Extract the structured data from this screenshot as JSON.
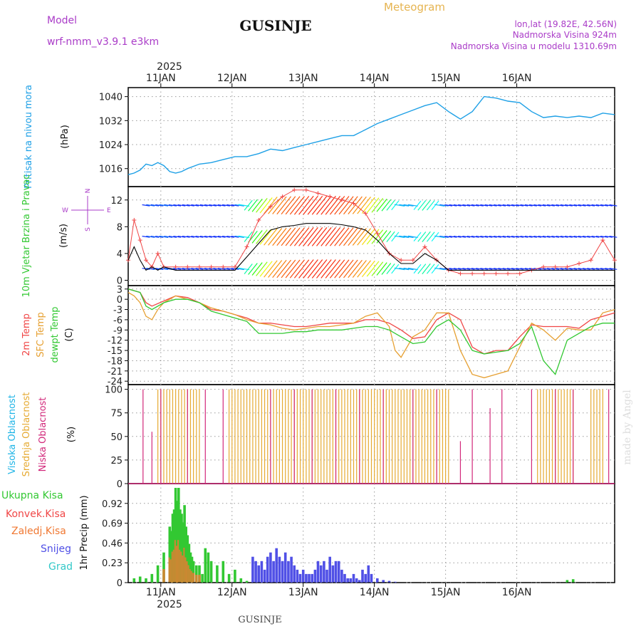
{
  "header": {
    "model_label": "Model",
    "model_name": "wrf-nmm_v3.9.1 e3km",
    "title": "GUSINJE",
    "product": "Meteogram",
    "lonlat": "lon,lat (19.82E, 42.56N)",
    "elevation": "Nadmorska Visina 924m",
    "model_elevation": "Nadmorska Visina u modelu 1310.69m"
  },
  "footer": {
    "station": "GUSINJE",
    "credit": "made by Angel"
  },
  "colors": {
    "pressure": "#1ea0e6",
    "temp2m": "#f04646",
    "sfc_temp": "#e6a032",
    "dewpt": "#32c832",
    "high_cloud": "#1eb4e6",
    "mid_cloud": "#e6aa32",
    "low_cloud": "#d2287a",
    "total_precip": "#32c832",
    "conv_precip": "#f04646",
    "frz_precip": "#f07832",
    "snow": "#5050e6",
    "graupel": "#32c8c8",
    "model_label": "#aa3cc8",
    "product": "#e6b450",
    "credit": "#dddddd"
  },
  "chart_data": [
    {
      "id": "pressure",
      "type": "line",
      "title": "Pritisak na nivou mora",
      "ylabel": "(hPa)",
      "ylim": [
        1010,
        1043
      ],
      "yticks": [
        "1016",
        "1024",
        "1032",
        "1040"
      ],
      "x": [
        0,
        2,
        4,
        6,
        8,
        10,
        12,
        14,
        16,
        18,
        20,
        24,
        28,
        32,
        36,
        40,
        44,
        48,
        52,
        56,
        60,
        64,
        68,
        72,
        76,
        80,
        84,
        88,
        92,
        96,
        100,
        104,
        108,
        112,
        116,
        120,
        124,
        126,
        128,
        132,
        136,
        140,
        144,
        148,
        152,
        156,
        160,
        164
      ],
      "values": [
        1014,
        1014.5,
        1015.5,
        1017.5,
        1017,
        1018,
        1017,
        1015,
        1014.5,
        1015,
        1016,
        1017.5,
        1018,
        1019,
        1020,
        1020,
        1021,
        1022.5,
        1022,
        1023,
        1024,
        1025,
        1026,
        1027,
        1027,
        1029,
        1031,
        1032.5,
        1034,
        1035.5,
        1037,
        1038,
        1035,
        1032.5,
        1035,
        1040,
        1039.5,
        1039,
        1038.5,
        1038,
        1035,
        1033,
        1033.5,
        1033,
        1033.5,
        1033,
        1034.5,
        1034
      ]
    },
    {
      "id": "wind",
      "type": "line",
      "title": "10m Vjetar Brzina i Pravac",
      "ylabel": "(m/s)",
      "ylim": [
        -0.8,
        14
      ],
      "yticks": [
        "0",
        "4",
        "8",
        "12"
      ],
      "compass": {
        "n": "N",
        "w": "W",
        "e": "E",
        "s": "S"
      },
      "series": [
        {
          "name": "speed",
          "x": [
            0,
            2,
            4,
            6,
            8,
            10,
            12,
            16,
            20,
            24,
            28,
            32,
            36,
            40,
            44,
            48,
            52,
            56,
            60,
            64,
            68,
            72,
            76,
            80,
            84,
            88,
            92,
            96,
            100,
            104,
            108,
            112,
            116,
            120,
            124,
            128,
            132,
            136,
            140,
            144,
            148,
            152,
            156,
            160,
            164
          ],
          "values": [
            3,
            5,
            3,
            1.5,
            2,
            1.5,
            2,
            1.5,
            1.5,
            1.5,
            1.5,
            1.5,
            1.5,
            3.5,
            5.5,
            7.5,
            8,
            8.2,
            8.5,
            8.5,
            8.5,
            8.3,
            8,
            7.5,
            6,
            4,
            2.5,
            2.5,
            4,
            3,
            1.5,
            1.5,
            1.5,
            1.5,
            1.5,
            1.5,
            1.5,
            1.5,
            1.5,
            1.5,
            1.5,
            1.5,
            1.5,
            1.5,
            1.5
          ]
        },
        {
          "name": "gust",
          "x": [
            0,
            2,
            4,
            6,
            8,
            10,
            12,
            16,
            20,
            24,
            28,
            32,
            36,
            40,
            44,
            48,
            52,
            56,
            60,
            64,
            68,
            72,
            76,
            80,
            84,
            88,
            92,
            96,
            100,
            104,
            108,
            112,
            116,
            120,
            124,
            128,
            132,
            136,
            140,
            144,
            148,
            152,
            156,
            160,
            164
          ],
          "values": [
            3,
            9,
            6,
            3,
            2,
            4,
            2,
            2,
            2,
            2,
            2,
            2,
            2,
            5,
            9,
            11,
            12.5,
            13.5,
            13.5,
            13,
            12.5,
            12,
            11.5,
            10,
            7,
            4,
            3,
            3,
            5,
            3,
            1.5,
            1,
            1,
            1,
            1,
            1,
            1,
            1.5,
            2,
            2,
            2,
            2.5,
            3,
            6,
            3
          ]
        }
      ],
      "arrow_rows": [
        1.7,
        6.5,
        11.2
      ]
    },
    {
      "id": "temperature",
      "type": "line",
      "title": "2m Temp",
      "title2": "SFC Temp",
      "title3": "dewpt Temp",
      "ylabel": "(C)",
      "ylim": [
        -25,
        4
      ],
      "yticks": [
        "-24",
        "-21",
        "-18",
        "-15",
        "-12",
        "-9",
        "-6",
        "-3",
        "0",
        "3"
      ],
      "series": [
        {
          "name": "2m Temp",
          "x": [
            0,
            4,
            6,
            8,
            12,
            16,
            20,
            24,
            28,
            32,
            36,
            40,
            44,
            48,
            52,
            56,
            60,
            64,
            68,
            72,
            76,
            80,
            84,
            88,
            92,
            96,
            100,
            104,
            108,
            112,
            116,
            120,
            124,
            128,
            132,
            136,
            140,
            144,
            148,
            152,
            156,
            160,
            164
          ],
          "values": [
            3,
            2,
            -1,
            -2,
            -0.5,
            1,
            0.5,
            -1,
            -3,
            -3.5,
            -4.5,
            -5.5,
            -7,
            -7,
            -7.5,
            -8,
            -8,
            -7.5,
            -7,
            -7,
            -7,
            -6,
            -6,
            -7,
            -9,
            -11.5,
            -11,
            -6,
            -4,
            -6,
            -14,
            -16,
            -15,
            -15,
            -11,
            -7.5,
            -8,
            -8,
            -8,
            -8.5,
            -6,
            -5,
            -4
          ]
        },
        {
          "name": "SFC Temp",
          "x": [
            0,
            2,
            4,
            6,
            8,
            10,
            12,
            16,
            20,
            24,
            28,
            32,
            36,
            40,
            44,
            48,
            52,
            56,
            60,
            64,
            68,
            72,
            76,
            80,
            84,
            88,
            90,
            92,
            96,
            100,
            104,
            108,
            112,
            116,
            120,
            124,
            128,
            132,
            136,
            140,
            144,
            148,
            152,
            156,
            160,
            164
          ],
          "values": [
            2,
            1,
            -1,
            -5,
            -6,
            -3,
            -1,
            1,
            0,
            -1,
            -2.5,
            -3.5,
            -4.5,
            -6,
            -7,
            -7.5,
            -8.5,
            -9,
            -8.5,
            -8,
            -8,
            -7.5,
            -7,
            -5,
            -4,
            -8,
            -15,
            -17,
            -11,
            -9,
            -4,
            -4,
            -15,
            -22,
            -23,
            -22,
            -21,
            -14,
            -7,
            -9,
            -12,
            -8.5,
            -9,
            -9,
            -4,
            -3
          ]
        },
        {
          "name": "dewpt Temp",
          "x": [
            0,
            4,
            6,
            8,
            12,
            16,
            20,
            24,
            28,
            32,
            36,
            40,
            44,
            48,
            52,
            56,
            60,
            64,
            68,
            72,
            76,
            80,
            84,
            88,
            92,
            96,
            100,
            104,
            108,
            112,
            116,
            120,
            124,
            128,
            132,
            136,
            140,
            144,
            148,
            152,
            156,
            160,
            164
          ],
          "values": [
            3,
            2,
            -2,
            -3,
            -1,
            0,
            0,
            -1,
            -3.5,
            -4.5,
            -5.5,
            -6.5,
            -10,
            -10,
            -10,
            -9.5,
            -9.5,
            -9,
            -9,
            -9,
            -8.5,
            -8,
            -8,
            -9,
            -11,
            -13,
            -12.5,
            -8,
            -6,
            -9,
            -15,
            -16,
            -15.5,
            -15,
            -13,
            -8,
            -18,
            -22,
            -12,
            -10,
            -8,
            -7,
            -7
          ]
        }
      ]
    },
    {
      "id": "clouds",
      "type": "bar",
      "title": "Visoka Oblacnost",
      "title2": "Srednja Oblacnost",
      "title3": "Niska Oblacnost",
      "ylabel": "(%)",
      "ylim": [
        0,
        105
      ],
      "yticks": [
        "0",
        "25",
        "50",
        "75",
        "100"
      ],
      "series": [
        {
          "name": "Srednja Oblacnost",
          "x_range": [
            [
              10,
              24
            ],
            [
              34,
              108
            ],
            [
              138,
              150
            ],
            [
              156,
              160
            ]
          ],
          "value": 100
        },
        {
          "name": "Niska Oblacnost",
          "x": [
            5,
            8,
            11,
            20,
            26,
            32,
            48,
            56,
            62,
            70,
            78,
            86,
            96,
            104,
            112,
            116,
            122,
            126,
            136,
            144,
            150,
            162
          ],
          "values": [
            100,
            55,
            100,
            100,
            100,
            100,
            100,
            100,
            100,
            100,
            100,
            100,
            100,
            100,
            45,
            100,
            80,
            100,
            100,
            100,
            100,
            100
          ]
        }
      ]
    },
    {
      "id": "precip",
      "type": "bar",
      "title": "1hr Precip",
      "ylabel": "(mm)",
      "legend": [
        "Ukupna Kisa",
        "Konvek.Kisa",
        "Zaledj.Kisa",
        "Snijeg",
        "Grad"
      ],
      "ylim": [
        0,
        1.15
      ],
      "yticks": [
        "0",
        "0.23",
        "0.46",
        "0.69",
        "0.92"
      ],
      "x_labels": [
        "11JAN",
        "12JAN",
        "13JAN",
        "14JAN",
        "15JAN",
        "16JAN"
      ],
      "top_year": "2025",
      "bottom_year": "2025",
      "x": [
        2,
        4,
        6,
        8,
        10,
        12,
        14,
        14.5,
        15,
        15.5,
        16,
        16.5,
        17,
        17.5,
        18,
        18.5,
        19,
        19.5,
        20,
        20.5,
        21,
        21.5,
        22,
        23,
        24,
        25,
        26,
        27,
        28,
        30,
        32,
        34,
        36,
        38,
        40,
        42,
        43,
        44,
        45,
        46,
        47,
        48,
        49,
        50,
        51,
        52,
        53,
        54,
        55,
        56,
        57,
        58,
        59,
        60,
        61,
        62,
        63,
        64,
        65,
        66,
        67,
        68,
        69,
        70,
        71,
        72,
        73,
        74,
        75,
        76,
        77,
        78,
        79,
        80,
        81,
        82,
        84,
        86,
        88,
        90,
        148,
        150
      ],
      "values": [
        0.05,
        0.07,
        0.05,
        0.1,
        0.2,
        0.35,
        0.65,
        0.6,
        0.8,
        0.85,
        1.1,
        0.95,
        1.1,
        0.85,
        0.8,
        0.7,
        0.9,
        0.65,
        0.55,
        0.45,
        0.35,
        0.3,
        0.25,
        0.2,
        0.2,
        0.1,
        0.4,
        0.35,
        0.25,
        0.2,
        0.25,
        0.1,
        0.15,
        0.05,
        0.02,
        0.3,
        0.25,
        0.2,
        0.25,
        0.15,
        0.3,
        0.35,
        0.25,
        0.4,
        0.3,
        0.25,
        0.35,
        0.25,
        0.3,
        0.2,
        0.15,
        0.1,
        0.15,
        0.1,
        0.1,
        0.1,
        0.15,
        0.25,
        0.2,
        0.25,
        0.15,
        0.3,
        0.2,
        0.25,
        0.25,
        0.15,
        0.1,
        0.05,
        0.05,
        0.1,
        0.05,
        0.03,
        0.15,
        0.1,
        0.2,
        0.1,
        0.05,
        0.03,
        0.02,
        0.01,
        0.03,
        0.04
      ]
    }
  ]
}
